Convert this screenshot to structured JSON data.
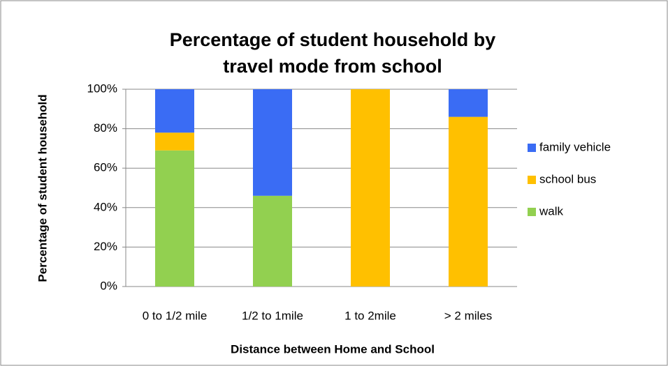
{
  "chart_data": {
    "type": "stacked_bar",
    "title": "Percentage of student household by travel mode from school",
    "x_label": "Distance between Home and School",
    "y_label": "Percentage of student household",
    "categories": [
      "0 to 1/2 mile",
      "1/2 to 1mile",
      "1 to 2mile",
      "> 2 miles"
    ],
    "series": [
      {
        "name": "walk",
        "color": "#92d050",
        "values": [
          69,
          46,
          0,
          0
        ]
      },
      {
        "name": "school bus",
        "color": "#ffc000",
        "values": [
          9,
          0,
          100,
          86
        ]
      },
      {
        "name": "family vehicle",
        "color": "#3a6cf4",
        "values": [
          22,
          54,
          0,
          14
        ]
      }
    ],
    "ylim": [
      0,
      100
    ],
    "yticks": [
      {
        "value": 0,
        "label": "0%"
      },
      {
        "value": 20,
        "label": "20%"
      },
      {
        "value": 40,
        "label": "40%"
      },
      {
        "value": 60,
        "label": "60%"
      },
      {
        "value": 80,
        "label": "80%"
      },
      {
        "value": 100,
        "label": "100%"
      }
    ],
    "grid": true,
    "legend": "right"
  }
}
